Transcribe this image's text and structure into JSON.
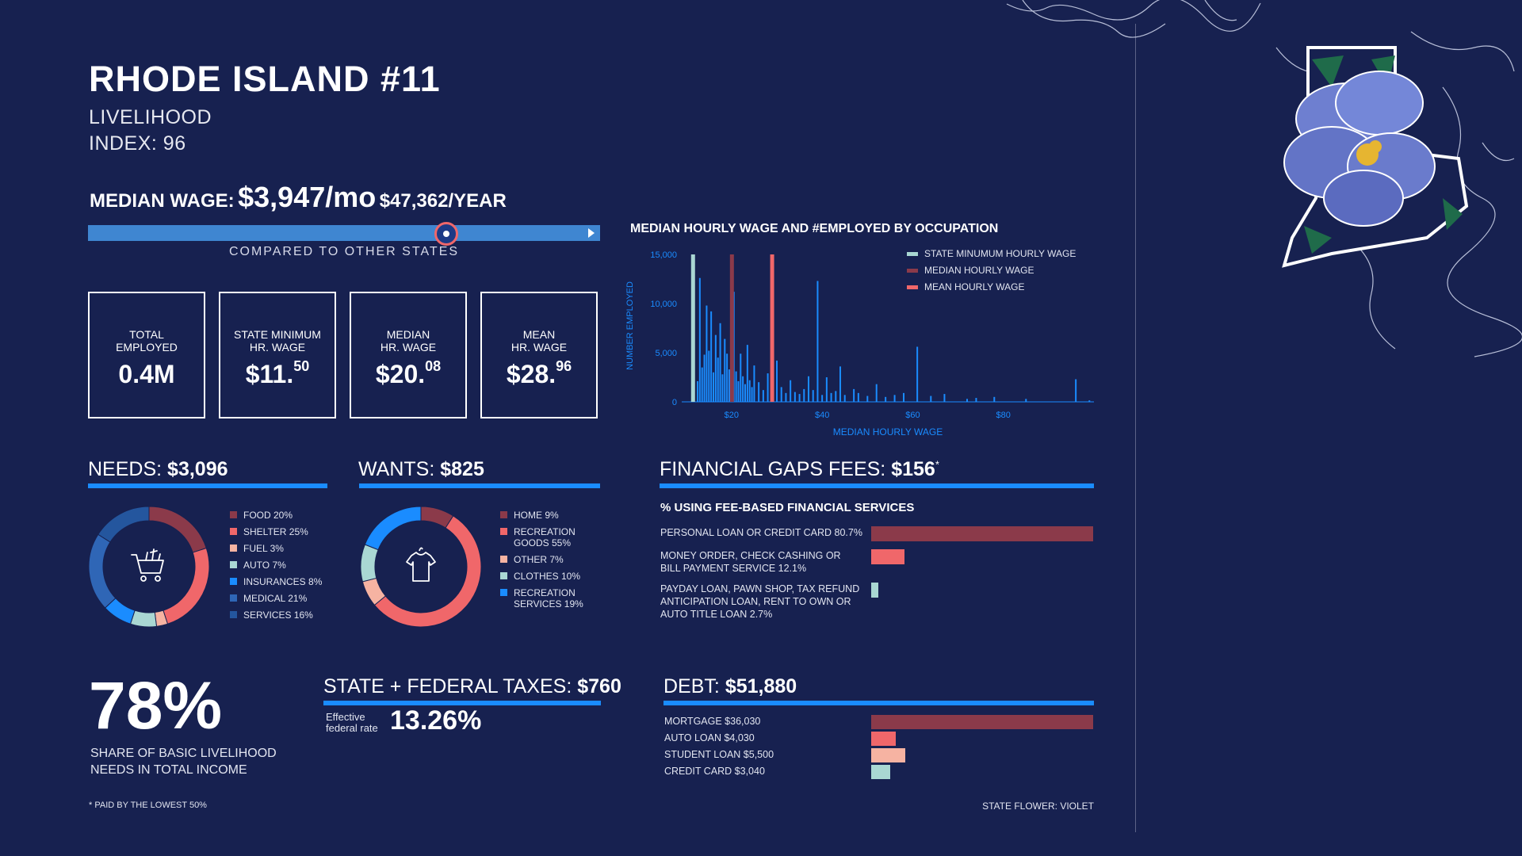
{
  "header": {
    "title": "RHODE ISLAND #11",
    "subtitle_line1": "LIVELIHOOD",
    "subtitle_line2": "INDEX: 96"
  },
  "median_wage": {
    "label": "MEDIAN WAGE:",
    "monthly": "$3,947/mo",
    "yearly": "$47,362/YEAR",
    "compare_caption": "COMPARED TO OTHER STATES",
    "position_fraction": 0.7
  },
  "stats": [
    {
      "label_line1": "TOTAL",
      "label_line2": "EMPLOYED",
      "value": "0.4M",
      "sup": ""
    },
    {
      "label_line1": "STATE MINIMUM",
      "label_line2": "HR. WAGE",
      "value": "$11.",
      "sup": "50"
    },
    {
      "label_line1": "MEDIAN",
      "label_line2": "HR. WAGE",
      "value": "$20.",
      "sup": "08"
    },
    {
      "label_line1": "MEAN",
      "label_line2": "HR. WAGE",
      "value": "$28.",
      "sup": "96"
    }
  ],
  "needs": {
    "label": "NEEDS:",
    "value": "$3,096"
  },
  "wants": {
    "label": "WANTS:",
    "value": "$825"
  },
  "fees": {
    "label": "FINANCIAL GAPS FEES:",
    "value": "$156",
    "mark": "*",
    "subtitle": "% USING FEE-BASED FINANCIAL SERVICES"
  },
  "taxes": {
    "label": "STATE + FEDERAL TAXES:",
    "value": "$760",
    "rate_label_line1": "Effective",
    "rate_label_line2": "federal rate",
    "rate": "13.26%"
  },
  "debt": {
    "label": "DEBT:",
    "value": "$51,880"
  },
  "share": {
    "value": "78%",
    "label_line1": "SHARE OF BASIC LIVELIHOOD",
    "label_line2": "NEEDS IN TOTAL INCOME"
  },
  "footnote": "* PAID BY THE LOWEST 50%",
  "flower_caption": "STATE FLOWER: VIOLET",
  "colors": {
    "background": "#172150",
    "accent_blue": "#1a8cff",
    "bar_blue": "#3f86d1",
    "maroon": "#8b3a4a",
    "coral": "#f0676a",
    "peach": "#f6b3a2",
    "mint": "#a9d7d3",
    "mid_blue": "#2f66b6"
  },
  "chart_data": [
    {
      "type": "bar",
      "title": "MEDIAN HOURLY WAGE AND #EMPLOYED BY OCCUPATION",
      "xlabel": "MEDIAN HOURLY WAGE",
      "ylabel": "NUMBER EMPLOYED",
      "xlim": [
        9,
        100
      ],
      "ylim": [
        0,
        15000
      ],
      "x_ticks": [
        {
          "v": 20,
          "label": "$20"
        },
        {
          "v": 40,
          "label": "$40"
        },
        {
          "v": 60,
          "label": "$60"
        },
        {
          "v": 80,
          "label": "$80"
        }
      ],
      "y_ticks": [
        {
          "v": 0,
          "label": "0"
        },
        {
          "v": 5000,
          "label": "5,000"
        },
        {
          "v": 10000,
          "label": "10,000"
        },
        {
          "v": 15000,
          "label": "15,000"
        }
      ],
      "legend": [
        "STATE MINUMUM HOURLY WAGE",
        "MEDIAN HOURLY WAGE",
        "MEAN HOURLY WAGE"
      ],
      "legend_position": "top-right",
      "reference_lines": [
        {
          "name": "STATE MINUMUM HOURLY WAGE",
          "x": 11.5,
          "color": "#a9d7d3"
        },
        {
          "name": "MEDIAN HOURLY WAGE",
          "x": 20.08,
          "color": "#8b3a4a"
        },
        {
          "name": "MEAN HOURLY WAGE",
          "x": 28.96,
          "color": "#f0676a"
        }
      ],
      "occupations": [
        [
          12.5,
          2100
        ],
        [
          13,
          12600
        ],
        [
          13.5,
          3500
        ],
        [
          14,
          4800
        ],
        [
          14.5,
          9800
        ],
        [
          15,
          5200
        ],
        [
          15.5,
          9200
        ],
        [
          16,
          3000
        ],
        [
          16.5,
          6800
        ],
        [
          17,
          4500
        ],
        [
          17.5,
          8000
        ],
        [
          18,
          2800
        ],
        [
          18.5,
          6400
        ],
        [
          19,
          4900
        ],
        [
          19.5,
          3300
        ],
        [
          20.5,
          11200
        ],
        [
          21,
          3100
        ],
        [
          21.5,
          2100
        ],
        [
          22,
          4900
        ],
        [
          22.5,
          2600
        ],
        [
          23,
          1800
        ],
        [
          23.5,
          5800
        ],
        [
          24,
          2200
        ],
        [
          24.5,
          1500
        ],
        [
          25,
          3700
        ],
        [
          26,
          2000
        ],
        [
          27,
          1200
        ],
        [
          28,
          2900
        ],
        [
          29,
          1100
        ],
        [
          30,
          4200
        ],
        [
          31,
          1500
        ],
        [
          32,
          900
        ],
        [
          33,
          2200
        ],
        [
          34,
          1000
        ],
        [
          35,
          800
        ],
        [
          36,
          1300
        ],
        [
          37,
          2600
        ],
        [
          38,
          1200
        ],
        [
          39,
          12300
        ],
        [
          40,
          700
        ],
        [
          41,
          2500
        ],
        [
          42,
          900
        ],
        [
          43,
          1100
        ],
        [
          44,
          3600
        ],
        [
          45,
          700
        ],
        [
          47,
          1300
        ],
        [
          48,
          900
        ],
        [
          50,
          600
        ],
        [
          52,
          1800
        ],
        [
          54,
          500
        ],
        [
          56,
          700
        ],
        [
          58,
          900
        ],
        [
          61,
          5600
        ],
        [
          64,
          600
        ],
        [
          67,
          800
        ],
        [
          72,
          300
        ],
        [
          74,
          400
        ],
        [
          78,
          500
        ],
        [
          85,
          300
        ],
        [
          96,
          2300
        ],
        [
          99,
          150
        ]
      ]
    },
    {
      "type": "pie",
      "title": "NEEDS",
      "slices": [
        {
          "label": "FOOD 20%",
          "value": 20,
          "color": "#8b3a4a"
        },
        {
          "label": "SHELTER 25%",
          "value": 25,
          "color": "#f0676a"
        },
        {
          "label": "FUEL 3%",
          "value": 3,
          "color": "#f6b3a2"
        },
        {
          "label": "AUTO 7%",
          "value": 7,
          "color": "#a9d7d3"
        },
        {
          "label": "INSURANCES 8%",
          "value": 8,
          "color": "#1a8cff"
        },
        {
          "label": "MEDICAL 21%",
          "value": 21,
          "color": "#2f66b6"
        },
        {
          "label": "SERVICES 16%",
          "value": 16,
          "color": "#24569e"
        }
      ]
    },
    {
      "type": "pie",
      "title": "WANTS",
      "slices": [
        {
          "label": "HOME 9%",
          "value": 9,
          "color": "#8b3a4a"
        },
        {
          "label_line1": "RECREATION",
          "label_line2": "GOODS 55%",
          "value": 55,
          "color": "#f0676a"
        },
        {
          "label": "OTHER 7%",
          "value": 7,
          "color": "#f6b3a2"
        },
        {
          "label": "CLOTHES 10%",
          "value": 10,
          "color": "#a9d7d3"
        },
        {
          "label_line1": "RECREATION",
          "label_line2": "SERVICES 19%",
          "value": 19,
          "color": "#1a8cff"
        }
      ]
    },
    {
      "type": "bar",
      "title": "% USING FEE-BASED FINANCIAL SERVICES",
      "orientation": "horizontal",
      "xlim": [
        0,
        80.7
      ],
      "bars": [
        {
          "lines": [
            "PERSONAL LOAN OR CREDIT CARD 80.7%"
          ],
          "value": 80.7,
          "color": "#8b3a4a"
        },
        {
          "lines": [
            "MONEY ORDER, CHECK CASHING OR",
            "BILL PAYMENT SERVICE 12.1%"
          ],
          "value": 12.1,
          "color": "#f0676a"
        },
        {
          "lines": [
            "PAYDAY LOAN, PAWN SHOP, TAX REFUND",
            "ANTICIPATION LOAN, RENT TO OWN OR",
            "AUTO TITLE LOAN 2.7%"
          ],
          "value": 2.7,
          "color": "#a9d7d3"
        }
      ]
    },
    {
      "type": "bar",
      "title": "DEBT",
      "orientation": "horizontal",
      "xlim": [
        0,
        36030
      ],
      "bars": [
        {
          "lines": [
            "MORTGAGE $36,030"
          ],
          "value": 36030,
          "color": "#8b3a4a"
        },
        {
          "lines": [
            "AUTO LOAN $4,030"
          ],
          "value": 4030,
          "color": "#f0676a"
        },
        {
          "lines": [
            "STUDENT LOAN $5,500"
          ],
          "value": 5500,
          "color": "#f6b3a2"
        },
        {
          "lines": [
            "CREDIT CARD $3,040"
          ],
          "value": 3040,
          "color": "#a9d7d3"
        }
      ]
    }
  ]
}
